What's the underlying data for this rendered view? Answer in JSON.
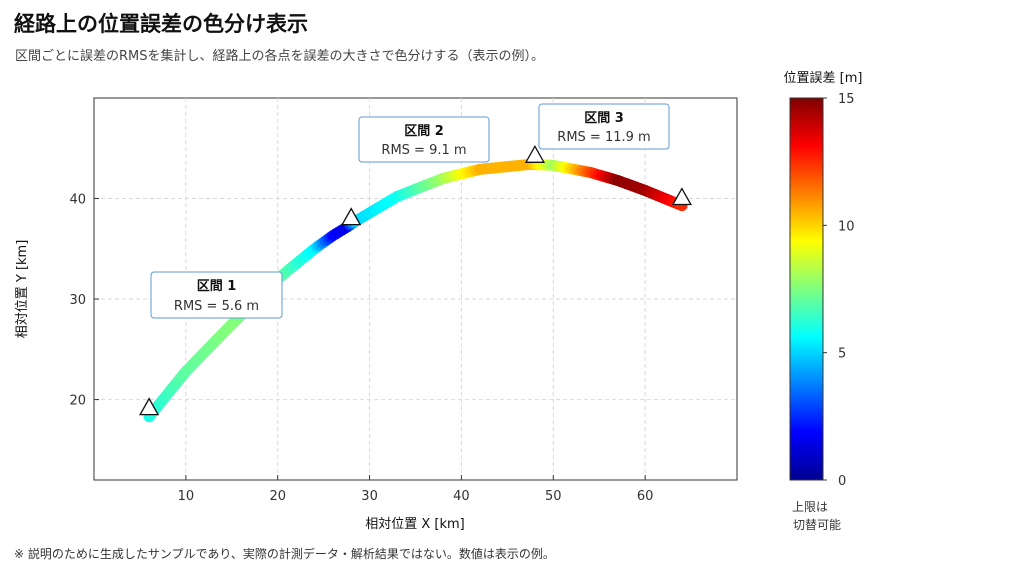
{
  "title": "経路上の位置誤差の色分け表示",
  "subtitle": "区間ごとに誤差のRMSを集計し、経路上の各点を誤差の大きさで色分けする（表示の例）。",
  "footnote": "※ 説明のために生成したサンプルであり、実際の計測データ・解析結果ではない。数値は表示の例。",
  "chart_data": {
    "type": "scatter",
    "xlabel": "相対位置 X [km]",
    "ylabel": "相対位置 Y [km]",
    "xlim": [
      0,
      70
    ],
    "ylim": [
      12,
      50
    ],
    "xticks": [
      10,
      20,
      30,
      40,
      50,
      60
    ],
    "yticks": [
      20,
      30,
      40
    ],
    "grid": true,
    "path_nodes": [
      {
        "x": 6,
        "y": 18.3,
        "err": 6.0
      },
      {
        "x": 10,
        "y": 22.8,
        "err": 7.0
      },
      {
        "x": 15,
        "y": 27.5,
        "err": 7.6
      },
      {
        "x": 20,
        "y": 32.0,
        "err": 7.2
      },
      {
        "x": 24,
        "y": 35.0,
        "err": 5.5
      },
      {
        "x": 26,
        "y": 36.3,
        "err": 2.0
      },
      {
        "x": 27.6,
        "y": 37.2,
        "err": 1.5
      },
      {
        "x": 28.4,
        "y": 37.7,
        "err": 5.0
      },
      {
        "x": 33,
        "y": 40.2,
        "err": 5.8
      },
      {
        "x": 38,
        "y": 42.0,
        "err": 8.0
      },
      {
        "x": 42,
        "y": 42.9,
        "err": 10.5
      },
      {
        "x": 47.5,
        "y": 43.4,
        "err": 10.5
      },
      {
        "x": 50,
        "y": 43.3,
        "err": 8.0
      },
      {
        "x": 54,
        "y": 42.6,
        "err": 12.0
      },
      {
        "x": 57,
        "y": 41.8,
        "err": 14.8
      },
      {
        "x": 60,
        "y": 40.8,
        "err": 14.5
      },
      {
        "x": 64,
        "y": 39.3,
        "err": 12.5
      }
    ],
    "markers": [
      {
        "x": 6,
        "y": 19.2
      },
      {
        "x": 28,
        "y": 38.1
      },
      {
        "x": 48,
        "y": 44.3
      },
      {
        "x": 64,
        "y": 40.1
      }
    ],
    "segments": [
      {
        "label": "区間 1",
        "rms": "RMS = 5.6 m"
      },
      {
        "label": "区間 2",
        "rms": "RMS = 9.1 m"
      },
      {
        "label": "区間 3",
        "rms": "RMS = 11.9 m"
      }
    ],
    "colorbar": {
      "title": "位置誤差 [m]",
      "min": 0,
      "max": 15,
      "ticks": [
        0,
        5,
        10,
        15
      ],
      "note_line1": "上限は",
      "note_line2": "切替可能",
      "colormap": "jet"
    }
  }
}
